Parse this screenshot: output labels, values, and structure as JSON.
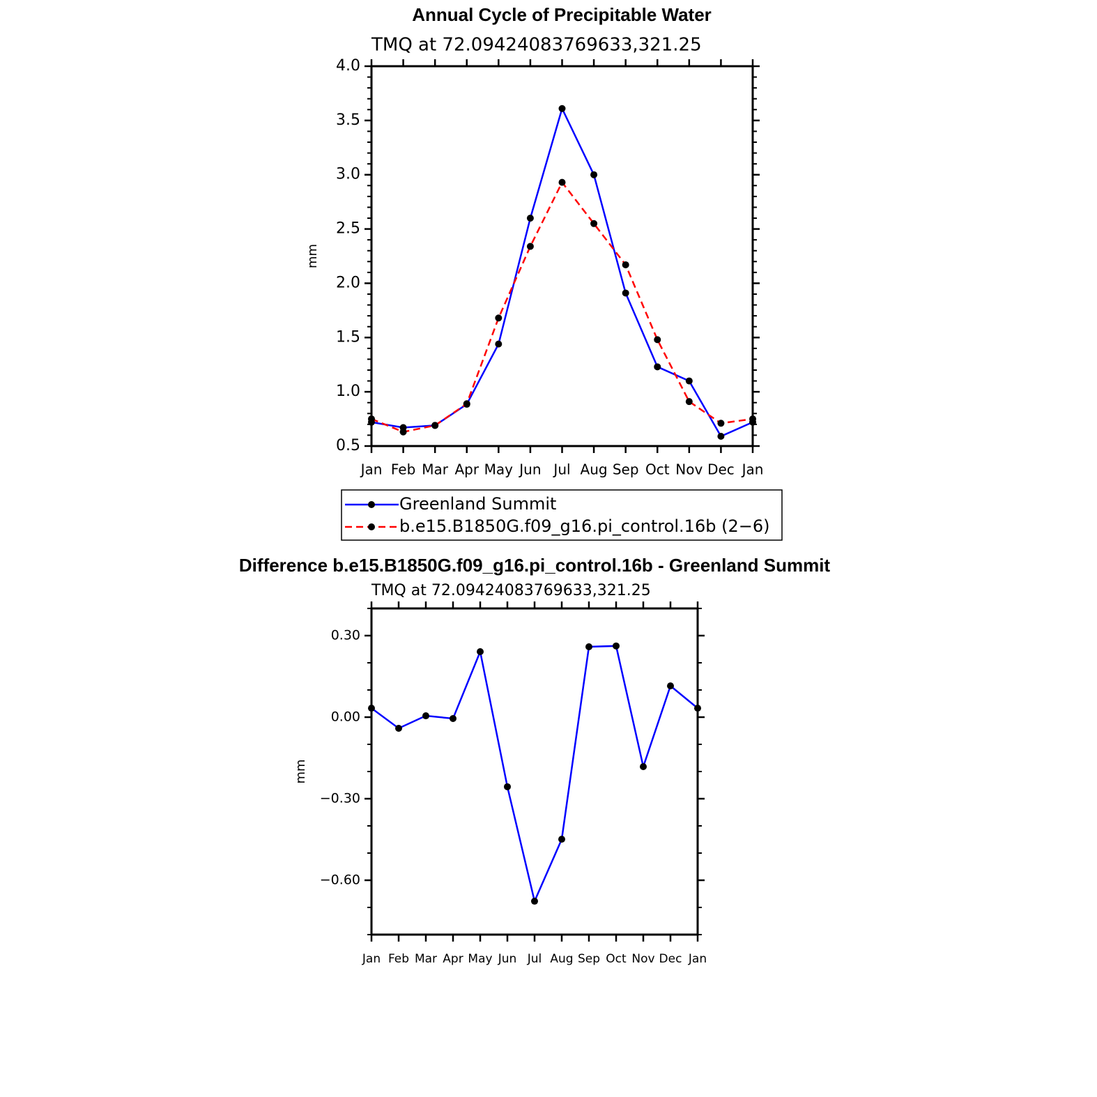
{
  "chart_data": [
    {
      "type": "line",
      "title": "Annual Cycle of Precipitable Water",
      "subtitle": "TMQ at 72.09424083769633,321.25",
      "y_label": "mm",
      "categories": [
        "Jan",
        "Feb",
        "Mar",
        "Apr",
        "May",
        "Jun",
        "Jul",
        "Aug",
        "Sep",
        "Oct",
        "Nov",
        "Dec",
        "Jan"
      ],
      "series": [
        {
          "name": "Greenland Summit",
          "color": "#0000ff",
          "line_style": "solid",
          "marker_color": "#000000",
          "values": [
            0.72,
            0.67,
            0.69,
            0.885,
            1.44,
            2.6,
            3.61,
            3.0,
            1.91,
            1.23,
            1.1,
            0.59,
            0.72
          ]
        },
        {
          "name": "b.e15.B1850G.f09_g16.pi_control.16b (2−6)",
          "color": "#ff0000",
          "line_style": "dashed",
          "marker_color": "#000000",
          "values": [
            0.75,
            0.63,
            0.69,
            0.89,
            1.68,
            2.34,
            2.93,
            2.55,
            2.17,
            1.48,
            0.91,
            0.71,
            0.75
          ]
        }
      ],
      "ylim": [
        0.5,
        4.0
      ],
      "yticks": [
        0.5,
        {
          "value": 1.0,
          "label": "1.0"
        },
        1.5,
        {
          "value": 2.0,
          "label": "2.0"
        },
        2.5,
        {
          "value": 3.0,
          "label": "3.0"
        },
        3.5,
        {
          "value": 4.0,
          "label": "4.0"
        }
      ],
      "yminorticks": [
        0.6,
        0.7,
        0.8,
        0.9,
        1.1,
        1.2,
        1.3,
        1.4,
        1.6,
        1.7,
        1.8,
        1.9,
        2.1,
        2.2,
        2.3,
        2.4,
        2.6,
        2.7,
        2.8,
        2.9,
        3.1,
        3.2,
        3.3,
        3.4,
        3.6,
        3.7,
        3.8,
        3.9
      ],
      "legend": true
    },
    {
      "type": "line",
      "title": "Difference b.e15.B1850G.f09_g16.pi_control.16b - Greenland Summit",
      "subtitle": "TMQ at 72.09424083769633,321.25",
      "y_label": "mm",
      "categories": [
        "Jan",
        "Feb",
        "Mar",
        "Apr",
        "May",
        "Jun",
        "Jul",
        "Aug",
        "Sep",
        "Oct",
        "Nov",
        "Dec",
        "Jan"
      ],
      "series": [
        {
          "color": "#0000ff",
          "line_style": "solid",
          "marker_color": "#000000",
          "values": [
            0.033,
            -0.041,
            0.005,
            -0.005,
            0.241,
            -0.256,
            -0.677,
            -0.449,
            0.259,
            0.262,
            -0.182,
            0.115,
            0.033
          ]
        }
      ],
      "ylim": [
        -0.8,
        0.4
      ],
      "yticks": [
        {
          "value": -0.6,
          "label": "−0.60"
        },
        {
          "value": -0.3,
          "label": "−0.30"
        },
        {
          "value": 0,
          "label": "0.00"
        },
        {
          "value": 0.3,
          "label": "0.30"
        }
      ],
      "yminorticks": [
        -0.8,
        -0.7,
        -0.5,
        -0.4,
        -0.2,
        -0.1,
        0.1,
        0.2,
        0.4
      ],
      "legend": false
    }
  ]
}
